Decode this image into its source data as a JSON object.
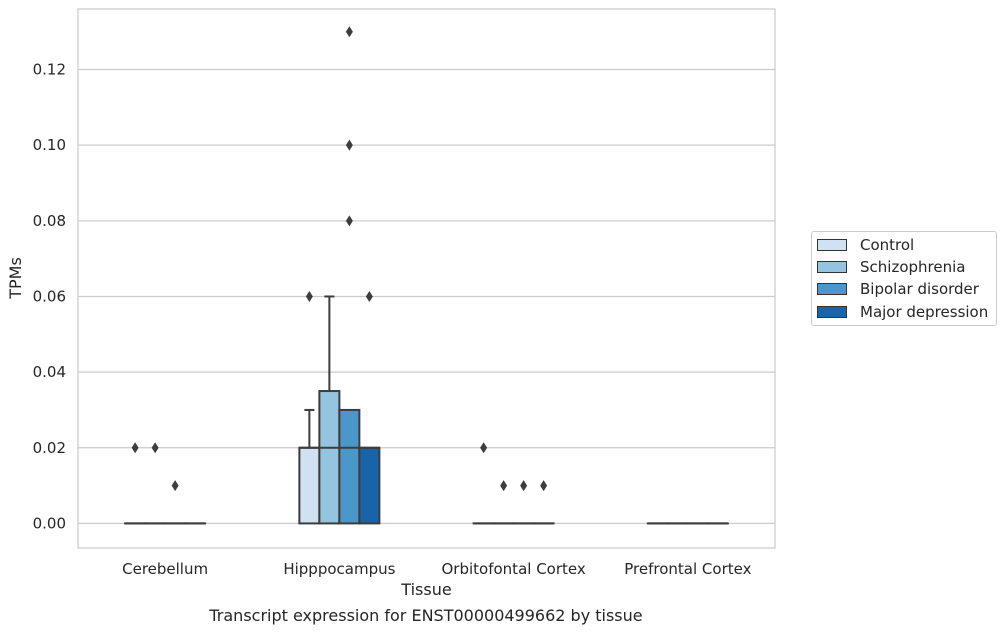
{
  "caption": "Transcript expression for ENST00000499662 by tissue",
  "chart_data": {
    "type": "box",
    "title": "",
    "xlabel": "Tissue",
    "ylabel": "TPMs",
    "categories": [
      "Cerebellum",
      "Hipppocampus",
      "Orbitofontal Cortex",
      "Prefrontal Cortex"
    ],
    "ylim": [
      -0.0065,
      0.136
    ],
    "yticks": [
      0.0,
      0.02,
      0.04,
      0.06,
      0.08,
      0.1,
      0.12
    ],
    "ytick_labels": [
      "0.00",
      "0.02",
      "0.04",
      "0.06",
      "0.08",
      "0.10",
      "0.12"
    ],
    "grid": true,
    "legend_position": "right",
    "series": [
      {
        "name": "Control",
        "color": "#d0e1f2",
        "boxes": [
          {
            "q1": 0,
            "median": 0,
            "q3": 0,
            "whisker_low": 0,
            "whisker_high": 0,
            "outliers": [
              0.02
            ]
          },
          {
            "q1": 0,
            "median": 0.02,
            "q3": 0.02,
            "whisker_low": 0,
            "whisker_high": 0.03,
            "outliers": [
              0.06
            ]
          },
          {
            "q1": 0,
            "median": 0,
            "q3": 0,
            "whisker_low": 0,
            "whisker_high": 0,
            "outliers": [
              0.02
            ]
          },
          {
            "q1": 0,
            "median": 0,
            "q3": 0,
            "whisker_low": 0,
            "whisker_high": 0,
            "outliers": []
          }
        ]
      },
      {
        "name": "Schizophrenia",
        "color": "#94c4df",
        "boxes": [
          {
            "q1": 0,
            "median": 0,
            "q3": 0,
            "whisker_low": 0,
            "whisker_high": 0,
            "outliers": [
              0.02
            ]
          },
          {
            "q1": 0,
            "median": 0.02,
            "q3": 0.035,
            "whisker_low": 0,
            "whisker_high": 0.06,
            "outliers": []
          },
          {
            "q1": 0,
            "median": 0,
            "q3": 0,
            "whisker_low": 0,
            "whisker_high": 0,
            "outliers": [
              0.01
            ]
          },
          {
            "q1": 0,
            "median": 0,
            "q3": 0,
            "whisker_low": 0,
            "whisker_high": 0,
            "outliers": []
          }
        ]
      },
      {
        "name": "Bipolar disorder",
        "color": "#4a98c9",
        "boxes": [
          {
            "q1": 0,
            "median": 0,
            "q3": 0,
            "whisker_low": 0,
            "whisker_high": 0,
            "outliers": [
              0.01
            ]
          },
          {
            "q1": 0,
            "median": 0.02,
            "q3": 0.03,
            "whisker_low": 0,
            "whisker_high": 0.03,
            "outliers": [
              0.08,
              0.1,
              0.13
            ]
          },
          {
            "q1": 0,
            "median": 0,
            "q3": 0,
            "whisker_low": 0,
            "whisker_high": 0,
            "outliers": [
              0.01
            ]
          },
          {
            "q1": 0,
            "median": 0,
            "q3": 0,
            "whisker_low": 0,
            "whisker_high": 0,
            "outliers": []
          }
        ]
      },
      {
        "name": "Major depression",
        "color": "#1764ab",
        "boxes": [
          {
            "q1": 0,
            "median": 0,
            "q3": 0,
            "whisker_low": 0,
            "whisker_high": 0,
            "outliers": []
          },
          {
            "q1": 0,
            "median": 0.02,
            "q3": 0.02,
            "whisker_low": 0,
            "whisker_high": 0.02,
            "outliers": [
              0.06
            ]
          },
          {
            "q1": 0,
            "median": 0,
            "q3": 0,
            "whisker_low": 0,
            "whisker_high": 0,
            "outliers": [
              0.01
            ]
          },
          {
            "q1": 0,
            "median": 0,
            "q3": 0,
            "whisker_low": 0,
            "whisker_high": 0,
            "outliers": []
          }
        ]
      }
    ]
  }
}
